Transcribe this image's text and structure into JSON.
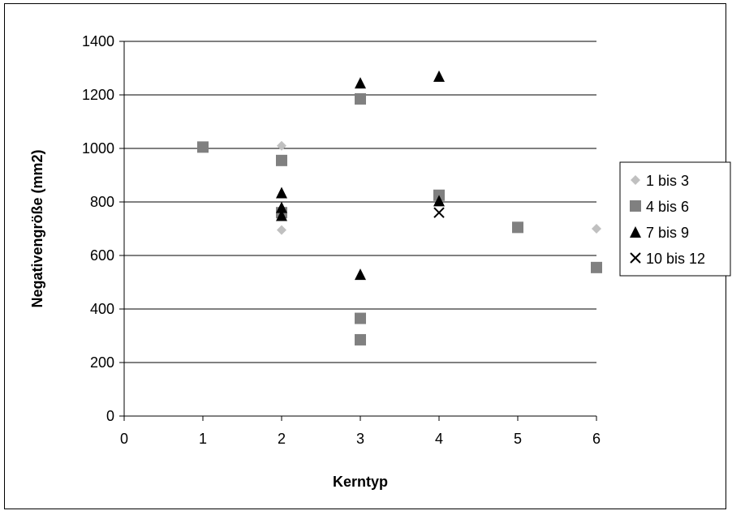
{
  "chart_data": {
    "type": "scatter",
    "title": "",
    "xlabel": "Kerntyp",
    "ylabel": "Negativengröße (mm2)",
    "xlim": [
      0,
      6
    ],
    "ylim": [
      0,
      1400
    ],
    "xticks": [
      "0",
      "1",
      "2",
      "3",
      "4",
      "5",
      "6"
    ],
    "yticks": [
      "0",
      "200",
      "400",
      "600",
      "800",
      "1000",
      "1200",
      "1400"
    ],
    "grid": "horizontal",
    "legend_position": "right",
    "series": [
      {
        "name": "1 bis 3",
        "marker": "diamond",
        "color": "#c0c0c0",
        "points": [
          [
            2,
            1010
          ],
          [
            2,
            695
          ],
          [
            6,
            700
          ]
        ]
      },
      {
        "name": "4 bis 6",
        "marker": "square",
        "color": "#808080",
        "points": [
          [
            1,
            1005
          ],
          [
            2,
            955
          ],
          [
            2,
            760
          ],
          [
            3,
            1185
          ],
          [
            3,
            365
          ],
          [
            3,
            285
          ],
          [
            4,
            825
          ],
          [
            5,
            705
          ],
          [
            6,
            555
          ]
        ]
      },
      {
        "name": "7 bis 9",
        "marker": "triangle",
        "color": "#000000",
        "points": [
          [
            2,
            835
          ],
          [
            2,
            780
          ],
          [
            2,
            750
          ],
          [
            3,
            1245
          ],
          [
            3,
            530
          ],
          [
            4,
            1270
          ],
          [
            4,
            805
          ]
        ]
      },
      {
        "name": "10 bis 12",
        "marker": "x",
        "color": "#000000",
        "points": [
          [
            4,
            760
          ]
        ]
      }
    ]
  }
}
